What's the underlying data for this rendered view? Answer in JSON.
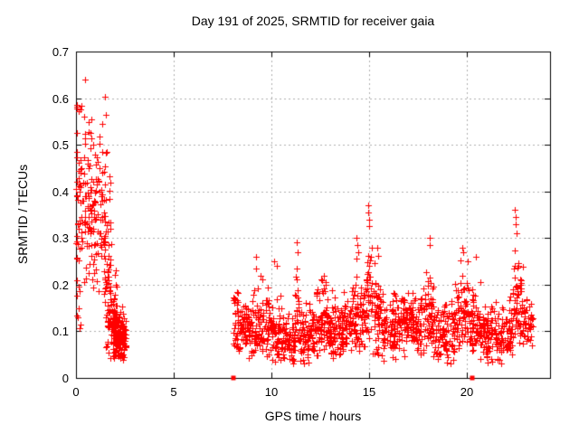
{
  "title": "Day 191 of 2025, SRMTID for receiver gaia",
  "colors": {
    "marker": "#ff0000",
    "grid": "#b0b0b0",
    "axis": "#000000",
    "background": "#ffffff"
  },
  "chart_data": {
    "type": "scatter",
    "title": "Day 191 of 2025, SRMTID for receiver gaia",
    "xlabel": "GPS time / hours",
    "ylabel": "SRMTID / TECUs",
    "xlim": [
      0,
      24.28
    ],
    "ylim": [
      0,
      0.7
    ],
    "grid": true,
    "x_ticks": [
      {
        "v": 0,
        "label": "0"
      },
      {
        "v": 5,
        "label": "5"
      },
      {
        "v": 10,
        "label": "10"
      },
      {
        "v": 15,
        "label": "15"
      },
      {
        "v": 20,
        "label": "20"
      }
    ],
    "y_ticks": [
      {
        "v": 0.0,
        "label": "0"
      },
      {
        "v": 0.1,
        "label": "0.1"
      },
      {
        "v": 0.2,
        "label": "0.2"
      },
      {
        "v": 0.3,
        "label": "0.3"
      },
      {
        "v": 0.4,
        "label": "0.4"
      },
      {
        "v": 0.5,
        "label": "0.5"
      },
      {
        "v": 0.6,
        "label": "0.6"
      },
      {
        "v": 0.7,
        "label": "0.7"
      }
    ],
    "series": [
      {
        "name": "srmtid",
        "marker": "plus",
        "color": "#ff0000",
        "segment_fields": "x_start_hours, x_end_hours, point_count, y_mean, y_sigma, y_min, y_max",
        "density_segments": [
          [
            0.02,
            0.45,
            55,
            0.4,
            0.13,
            0.15,
            0.6
          ],
          [
            0.02,
            0.25,
            8,
            0.15,
            0.04,
            0.09,
            0.22
          ],
          [
            0.45,
            0.8,
            50,
            0.4,
            0.1,
            0.2,
            0.58
          ],
          [
            0.8,
            1.2,
            42,
            0.32,
            0.09,
            0.17,
            0.52
          ],
          [
            1.2,
            1.5,
            36,
            0.34,
            0.11,
            0.1,
            0.56
          ],
          [
            1.45,
            1.8,
            48,
            0.27,
            0.12,
            0.06,
            0.52
          ],
          [
            1.6,
            2.1,
            66,
            0.12,
            0.05,
            0.04,
            0.26
          ],
          [
            1.9,
            2.55,
            130,
            0.085,
            0.028,
            0.035,
            0.16
          ],
          [
            8.03,
            8.3,
            30,
            0.13,
            0.035,
            0.05,
            0.21
          ],
          [
            8.3,
            8.7,
            42,
            0.11,
            0.03,
            0.05,
            0.19
          ],
          [
            8.7,
            9.3,
            62,
            0.1,
            0.035,
            0.04,
            0.22
          ],
          [
            9.3,
            9.9,
            62,
            0.11,
            0.04,
            0.04,
            0.24
          ],
          [
            9.9,
            10.5,
            62,
            0.1,
            0.035,
            0.03,
            0.22
          ],
          [
            10.5,
            11.2,
            72,
            0.085,
            0.03,
            0.03,
            0.17
          ],
          [
            11.2,
            11.45,
            26,
            0.12,
            0.05,
            0.05,
            0.25
          ],
          [
            11.45,
            12.0,
            56,
            0.09,
            0.035,
            0.03,
            0.19
          ],
          [
            12.0,
            12.55,
            58,
            0.11,
            0.04,
            0.04,
            0.21
          ],
          [
            12.55,
            12.95,
            44,
            0.12,
            0.045,
            0.05,
            0.22
          ],
          [
            12.95,
            13.5,
            56,
            0.1,
            0.035,
            0.04,
            0.2
          ],
          [
            13.5,
            14.15,
            68,
            0.11,
            0.035,
            0.05,
            0.2
          ],
          [
            14.15,
            14.6,
            48,
            0.13,
            0.05,
            0.05,
            0.26
          ],
          [
            14.6,
            14.85,
            26,
            0.12,
            0.04,
            0.06,
            0.22
          ],
          [
            14.85,
            15.15,
            34,
            0.17,
            0.06,
            0.08,
            0.32
          ],
          [
            15.15,
            15.65,
            52,
            0.13,
            0.05,
            0.05,
            0.27
          ],
          [
            15.65,
            16.4,
            78,
            0.11,
            0.035,
            0.03,
            0.21
          ],
          [
            16.4,
            17.4,
            105,
            0.12,
            0.032,
            0.04,
            0.2
          ],
          [
            17.4,
            17.85,
            46,
            0.11,
            0.035,
            0.04,
            0.2
          ],
          [
            17.85,
            18.3,
            48,
            0.14,
            0.055,
            0.06,
            0.27
          ],
          [
            18.3,
            19.4,
            112,
            0.1,
            0.035,
            0.03,
            0.19
          ],
          [
            19.4,
            20.1,
            72,
            0.13,
            0.05,
            0.05,
            0.26
          ],
          [
            20.1,
            20.7,
            62,
            0.11,
            0.04,
            0.05,
            0.22
          ],
          [
            20.7,
            21.8,
            112,
            0.09,
            0.03,
            0.03,
            0.17
          ],
          [
            21.8,
            22.35,
            56,
            0.1,
            0.035,
            0.05,
            0.19
          ],
          [
            22.35,
            22.9,
            62,
            0.15,
            0.06,
            0.07,
            0.3
          ],
          [
            22.9,
            23.4,
            40,
            0.12,
            0.025,
            0.07,
            0.17
          ]
        ],
        "points": [
          [
            0.45,
            0.64
          ],
          [
            0.06,
            0.585
          ],
          [
            0.03,
            0.525
          ],
          [
            0.9,
            0.5
          ],
          [
            1.35,
            0.545
          ],
          [
            1.5,
            0.603
          ],
          [
            1.55,
            0.565
          ],
          [
            9.2,
            0.26
          ],
          [
            9.22,
            0.235
          ],
          [
            10.15,
            0.25
          ],
          [
            10.3,
            0.24
          ],
          [
            11.3,
            0.29
          ],
          [
            11.33,
            0.27
          ],
          [
            12.7,
            0.22
          ],
          [
            14.35,
            0.3
          ],
          [
            14.4,
            0.285
          ],
          [
            14.45,
            0.27
          ],
          [
            14.95,
            0.37
          ],
          [
            14.97,
            0.355
          ],
          [
            15.0,
            0.34
          ],
          [
            15.02,
            0.325
          ],
          [
            15.45,
            0.28
          ],
          [
            18.1,
            0.3
          ],
          [
            18.14,
            0.285
          ],
          [
            19.8,
            0.28
          ],
          [
            19.85,
            0.27
          ],
          [
            20.5,
            0.26
          ],
          [
            22.48,
            0.36
          ],
          [
            22.5,
            0.345
          ],
          [
            22.53,
            0.33
          ],
          [
            22.56,
            0.31
          ]
        ]
      },
      {
        "name": "gap-markers",
        "marker": "square",
        "color": "#ff0000",
        "points": [
          [
            8.06,
            0
          ],
          [
            20.28,
            0
          ]
        ]
      }
    ]
  }
}
